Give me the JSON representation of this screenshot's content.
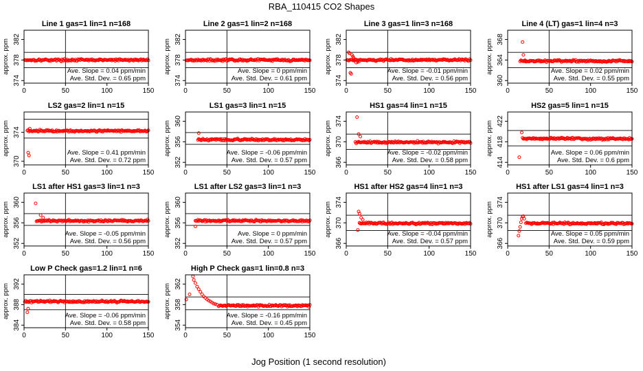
{
  "figure": {
    "title": "RBA_110415  CO2 Shapes",
    "xlabel": "Jog Position (1 second resolution)"
  },
  "chart_data": [
    {
      "type": "scatter",
      "title": "Line 1 gas=1 lin=1 n=168",
      "ylabel": "approx. ppm",
      "xlim": [
        0,
        150
      ],
      "ylim": [
        373.5,
        383.8
      ],
      "yticks": [
        374,
        378,
        382
      ],
      "xticks": [
        0,
        50,
        100,
        150
      ],
      "hlines": [
        376.5,
        379.5
      ],
      "vline": 50,
      "baseline": 378,
      "x_start": 1,
      "spikes": [],
      "slope_text": "Ave. Slope = 0.04  ppm/min",
      "sd_text": "Ave. Std. Dev. = 0.65  ppm",
      "color": "#ff0000"
    },
    {
      "type": "scatter",
      "title": "Line 2 gas=1 lin=2 n=168",
      "ylabel": "approx. ppm",
      "xlim": [
        0,
        150
      ],
      "ylim": [
        373.5,
        383.8
      ],
      "yticks": [
        374,
        378,
        382
      ],
      "xticks": [
        0,
        50,
        100,
        150
      ],
      "hlines": [
        376.5,
        379.5
      ],
      "vline": 50,
      "baseline": 378,
      "x_start": 1,
      "spikes": [],
      "slope_text": "Ave. Slope = 0  ppm/min",
      "sd_text": "Ave. Std. Dev. = 0.61  ppm",
      "color": "#ff0000"
    },
    {
      "type": "scatter",
      "title": "Line 3 gas=1 lin=3 n=168",
      "ylabel": "approx. ppm",
      "xlim": [
        0,
        150
      ],
      "ylim": [
        373.5,
        383.8
      ],
      "yticks": [
        374,
        378,
        382
      ],
      "xticks": [
        0,
        50,
        100,
        150
      ],
      "hlines": [
        376.5,
        379.5
      ],
      "vline": 50,
      "baseline": 378,
      "x_start": 1,
      "spikes": [
        [
          3,
          379.5
        ],
        [
          4,
          379.3
        ],
        [
          5,
          375.5
        ],
        [
          6,
          375.3
        ],
        [
          7,
          379.0
        ],
        [
          8,
          378.7
        ],
        [
          9,
          378.4
        ],
        [
          10,
          378.0
        ],
        [
          12,
          377.5
        ],
        [
          14,
          377.6
        ]
      ],
      "slope_text": "Ave. Slope = -0.01  ppm/min",
      "sd_text": "Ave. Std. Dev. = 0.56  ppm",
      "color": "#ff0000"
    },
    {
      "type": "scatter",
      "title": "Line 4 (LT) gas=1 lin=4 n=3",
      "ylabel": "approx. ppm",
      "xlim": [
        0,
        150
      ],
      "ylim": [
        359.5,
        369.8
      ],
      "yticks": [
        360,
        364,
        368
      ],
      "xticks": [
        0,
        50,
        100,
        150
      ],
      "hlines": [
        362.5,
        365.5
      ],
      "vline": 50,
      "baseline": 363.8,
      "x_start": 15,
      "spikes": [
        [
          18,
          367.5
        ],
        [
          19,
          365.0
        ],
        [
          21,
          363.8
        ]
      ],
      "slope_text": "Ave. Slope = 0.02  ppm/min",
      "sd_text": "Ave. Std. Dev. = 0.55  ppm",
      "color": "#ff0000"
    },
    {
      "type": "scatter",
      "title": "LS2 gas=2 lin=1 n=15",
      "ylabel": "approx. ppm",
      "xlim": [
        0,
        150
      ],
      "ylim": [
        369.5,
        376.8
      ],
      "yticks": [
        370,
        374
      ],
      "xticks": [
        0,
        50,
        100,
        150
      ],
      "hlines": [
        373.2,
        375.8
      ],
      "vline": 50,
      "baseline": 374.2,
      "x_start": 4,
      "spikes": [
        [
          5,
          371.2
        ],
        [
          6,
          370.8
        ],
        [
          7,
          374.5
        ]
      ],
      "slope_text": "Ave. Slope = 0.41  ppm/min",
      "sd_text": "Ave. Std. Dev. = 0.72  ppm",
      "color": "#ff0000"
    },
    {
      "type": "scatter",
      "title": "LS1 gas=3 lin=1 n=15",
      "ylabel": "approx. ppm",
      "xlim": [
        0,
        150
      ],
      "ylim": [
        351.5,
        361.8
      ],
      "yticks": [
        352,
        356,
        360
      ],
      "xticks": [
        0,
        50,
        100,
        150
      ],
      "hlines": [
        355.5,
        357.8
      ],
      "vline": 50,
      "baseline": 356.4,
      "x_start": 15,
      "spikes": [
        [
          16,
          357.7
        ]
      ],
      "slope_text": "Ave. Slope = -0.06  ppm/min",
      "sd_text": "Ave. Std. Dev. = 0.57  ppm",
      "color": "#ff0000"
    },
    {
      "type": "scatter",
      "title": "HS1 gas=4 lin=1 n=15",
      "ylabel": "approx. ppm",
      "xlim": [
        0,
        150
      ],
      "ylim": [
        365.5,
        375.8
      ],
      "yticks": [
        366,
        370,
        374
      ],
      "xticks": [
        0,
        50,
        100,
        150
      ],
      "hlines": [
        368.5,
        371.5
      ],
      "vline": 50,
      "baseline": 369.9,
      "x_start": 11,
      "spikes": [
        [
          13,
          374.8
        ],
        [
          15,
          371.5
        ],
        [
          17,
          371.0
        ]
      ],
      "slope_text": "Ave. Slope = -0.02  ppm/min",
      "sd_text": "Ave. Std. Dev. = 0.58  ppm",
      "color": "#ff0000"
    },
    {
      "type": "scatter",
      "title": "HS2 gas=5 lin=1 n=15",
      "ylabel": "approx. ppm",
      "xlim": [
        0,
        150
      ],
      "ylim": [
        413.5,
        423.8
      ],
      "yticks": [
        414,
        418,
        422
      ],
      "xticks": [
        0,
        50,
        100,
        150
      ],
      "hlines": [
        417.2,
        420.2
      ],
      "vline": 50,
      "baseline": 418.6,
      "x_start": 18,
      "spikes": [
        [
          14,
          415.0
        ],
        [
          17,
          419.8
        ]
      ],
      "slope_text": "Ave. Slope = 0.06  ppm/min",
      "sd_text": "Ave. Std. Dev. = 0.6  ppm",
      "color": "#ff0000"
    },
    {
      "type": "scatter",
      "title": "LS1 after HS1 gas=3 lin=1 n=3",
      "ylabel": "approx. ppm",
      "xlim": [
        0,
        150
      ],
      "ylim": [
        351.5,
        361.8
      ],
      "yticks": [
        352,
        356,
        360
      ],
      "xticks": [
        0,
        50,
        100,
        150
      ],
      "hlines": [
        355.5,
        357.8
      ],
      "vline": 50,
      "baseline": 356.4,
      "x_start": 15,
      "spikes": [
        [
          14,
          359.8
        ],
        [
          20,
          357.5
        ],
        [
          23,
          357.0
        ]
      ],
      "slope_text": "Ave. Slope = -0.05  ppm/min",
      "sd_text": "Ave. Std. Dev. = 0.56  ppm",
      "color": "#ff0000"
    },
    {
      "type": "scatter",
      "title": "LS1 after LS2 gas=3 lin=1 n=3",
      "ylabel": "approx. ppm",
      "xlim": [
        0,
        150
      ],
      "ylim": [
        351.5,
        361.8
      ],
      "yticks": [
        352,
        356,
        360
      ],
      "xticks": [
        0,
        50,
        100,
        150
      ],
      "hlines": [
        355.5,
        357.8
      ],
      "vline": 50,
      "baseline": 356.4,
      "x_start": 12,
      "spikes": [
        [
          12,
          355.3
        ]
      ],
      "slope_text": "Ave. Slope = 0  ppm/min",
      "sd_text": "Ave. Std. Dev. = 0.57  ppm",
      "color": "#ff0000"
    },
    {
      "type": "scatter",
      "title": "HS1 after HS2 gas=4 lin=1 n=3",
      "ylabel": "approx. ppm",
      "xlim": [
        0,
        150
      ],
      "ylim": [
        365.5,
        375.8
      ],
      "yticks": [
        366,
        370,
        374
      ],
      "xticks": [
        0,
        50,
        100,
        150
      ],
      "hlines": [
        368.5,
        371.5
      ],
      "vline": 50,
      "baseline": 369.9,
      "x_start": 16,
      "spikes": [
        [
          14,
          368.6
        ],
        [
          15,
          372.2
        ],
        [
          16,
          371.8
        ],
        [
          18,
          371.0
        ],
        [
          20,
          370.6
        ]
      ],
      "slope_text": "Ave. Slope = -0.04  ppm/min",
      "sd_text": "Ave. Std. Dev. = 0.57  ppm",
      "color": "#ff0000"
    },
    {
      "type": "scatter",
      "title": "HS1 after LS1 gas=4 lin=1 n=3",
      "ylabel": "approx. ppm",
      "xlim": [
        0,
        150
      ],
      "ylim": [
        365.5,
        375.8
      ],
      "yticks": [
        366,
        370,
        374
      ],
      "xticks": [
        0,
        50,
        100,
        150
      ],
      "hlines": [
        368.5,
        371.5
      ],
      "vline": 50,
      "baseline": 369.9,
      "x_start": 22,
      "spikes": [
        [
          13,
          367.5
        ],
        [
          14,
          368.4
        ],
        [
          15,
          369.2
        ],
        [
          16,
          370.1
        ],
        [
          17,
          370.8
        ],
        [
          18,
          371.2
        ],
        [
          19,
          371.3
        ],
        [
          20,
          370.8
        ]
      ],
      "slope_text": "Ave. Slope = 0.05  ppm/min",
      "sd_text": "Ave. Std. Dev. = 0.59  ppm",
      "color": "#ff0000"
    },
    {
      "type": "scatter",
      "title": "Low P Check gas=1.2 lin=1 n=6",
      "ylabel": "approx. ppm",
      "xlim": [
        0,
        150
      ],
      "ylim": [
        383.5,
        393.8
      ],
      "yticks": [
        384,
        388,
        392
      ],
      "xticks": [
        0,
        50,
        100,
        150
      ],
      "hlines": [
        387.0,
        390.0
      ],
      "vline": 50,
      "baseline": 388.6,
      "x_start": 1,
      "spikes": [
        [
          4,
          386.5
        ],
        [
          5,
          387.2
        ]
      ],
      "slope_text": "Ave. Slope = -0.06  ppm/min",
      "sd_text": "Ave. Std. Dev. = 0.58  ppm",
      "color": "#ff0000"
    },
    {
      "type": "scatter",
      "title": "High P Check gas=1 lin=0.8 n=3",
      "ylabel": "approx. ppm",
      "xlim": [
        0,
        150
      ],
      "ylim": [
        353.5,
        363.8
      ],
      "yticks": [
        354,
        358,
        362
      ],
      "xticks": [
        0,
        50,
        100,
        150
      ],
      "hlines": [
        357.0,
        359.5
      ],
      "vline": 50,
      "baseline": 357.8,
      "x_start": 40,
      "spikes": [
        [
          1,
          359.0
        ],
        [
          5,
          360.0
        ],
        [
          9,
          363.5
        ],
        [
          10,
          362.8
        ],
        [
          12,
          362.2
        ],
        [
          14,
          361.5
        ],
        [
          16,
          361.0
        ],
        [
          18,
          360.5
        ],
        [
          20,
          360.0
        ],
        [
          22,
          359.6
        ],
        [
          24,
          359.3
        ],
        [
          26,
          359.0
        ],
        [
          28,
          358.8
        ],
        [
          30,
          358.6
        ],
        [
          32,
          358.4
        ],
        [
          34,
          358.2
        ],
        [
          36,
          358.1
        ],
        [
          38,
          358.0
        ]
      ],
      "slope_text": "Ave. Slope = -0.16  ppm/min",
      "sd_text": "Ave. Std. Dev. = 0.45  ppm",
      "color": "#ff0000"
    }
  ]
}
